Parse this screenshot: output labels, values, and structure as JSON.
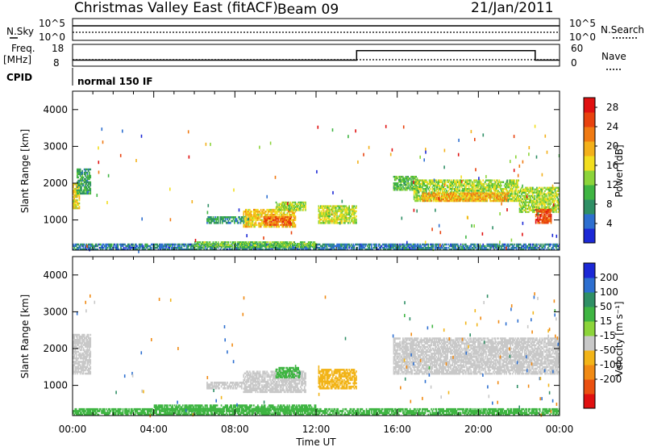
{
  "header": {
    "station": "Christmas Valley East (fitACF)",
    "beam": "Beam 09",
    "date": "21/Jan/2011"
  },
  "params": {
    "nsky_label": "N.Sky",
    "nsky_ticks": [
      "10^5",
      "10^0"
    ],
    "nsearch_label": "N.Search",
    "nsearch_ticks": [
      "10^5",
      "10^0"
    ],
    "freq_label": "Freq.",
    "freq_unit": "[MHz]",
    "freq_ticks": [
      "18",
      "8"
    ],
    "nave_label": "Nave",
    "nave_ticks": [
      "60",
      "0"
    ],
    "cpid_label": "CPID",
    "cpid_value": "normal 150 IF",
    "freq_steps": [
      {
        "start": 0.0,
        "end": 14.0,
        "freq": 10.5
      },
      {
        "start": 14.0,
        "end": 22.8,
        "freq": 15.0
      },
      {
        "start": 22.8,
        "end": 24.0,
        "freq": 10.5
      }
    ]
  },
  "chart_data": [
    {
      "type": "heatmap",
      "name": "power",
      "ylabel": "Slant Range [km]",
      "xlabel": "",
      "xlim": [
        0,
        24
      ],
      "ylim": [
        180,
        4500
      ],
      "yticks": [
        "1000",
        "2000",
        "3000",
        "4000"
      ],
      "yticks_values": [
        1000,
        2000,
        3000,
        4000
      ],
      "colorbar": {
        "label": "Power [dB]",
        "ticks": [
          "4",
          "8",
          "12",
          "16",
          "20",
          "24",
          "28"
        ],
        "tick_values": [
          4,
          8,
          12,
          16,
          20,
          24,
          28
        ],
        "range": [
          0,
          30
        ],
        "colors": [
          "#1b28d6",
          "#2d6fd0",
          "#2f8f65",
          "#3fb542",
          "#8cd43a",
          "#f2de1f",
          "#f3b01a",
          "#f07a12",
          "#e8420e",
          "#e01010"
        ]
      },
      "regions": [
        {
          "t0": 0.0,
          "t1": 0.35,
          "r0": 1300,
          "r1": 2000,
          "v": 17
        },
        {
          "t0": 0.2,
          "t1": 0.9,
          "r0": 1700,
          "r1": 2400,
          "v": 9
        },
        {
          "t0": 6.6,
          "t1": 8.7,
          "r0": 900,
          "r1": 1100,
          "v": 8
        },
        {
          "t0": 8.4,
          "t1": 11.0,
          "r0": 800,
          "r1": 1300,
          "v": 18
        },
        {
          "t0": 9.4,
          "t1": 10.8,
          "r0": 850,
          "r1": 1100,
          "v": 24
        },
        {
          "t0": 10.0,
          "t1": 11.5,
          "r0": 1250,
          "r1": 1500,
          "v": 14
        },
        {
          "t0": 12.1,
          "t1": 14.0,
          "r0": 900,
          "r1": 1400,
          "v": 15
        },
        {
          "t0": 15.8,
          "t1": 17.0,
          "r0": 1800,
          "r1": 2200,
          "v": 11
        },
        {
          "t0": 16.8,
          "t1": 22.0,
          "r0": 1500,
          "r1": 2100,
          "v": 14
        },
        {
          "t0": 17.2,
          "t1": 21.5,
          "r0": 1500,
          "r1": 1750,
          "v": 20
        },
        {
          "t0": 22.0,
          "t1": 24.0,
          "r0": 1200,
          "r1": 1900,
          "v": 14
        },
        {
          "t0": 22.8,
          "t1": 23.6,
          "r0": 900,
          "r1": 1300,
          "v": 25
        },
        {
          "t0": 0.0,
          "t1": 24.0,
          "r0": 180,
          "r1": 360,
          "v": 6
        },
        {
          "t0": 6.0,
          "t1": 12.0,
          "r0": 250,
          "r1": 420,
          "v": 12
        }
      ]
    },
    {
      "type": "heatmap",
      "name": "velocity",
      "ylabel": "Slant Range [km]",
      "xlabel": "Time UT",
      "xlim": [
        0,
        24
      ],
      "ylim": [
        180,
        4500
      ],
      "xticks": [
        "00:00",
        "04:00",
        "08:00",
        "12:00",
        "16:00",
        "20:00",
        "00:00"
      ],
      "xticks_values": [
        0,
        4,
        8,
        12,
        16,
        20,
        24
      ],
      "yticks": [
        "1000",
        "2000",
        "3000",
        "4000"
      ],
      "yticks_values": [
        1000,
        2000,
        3000,
        4000
      ],
      "colorbar": {
        "label": "Velocity [m s⁻¹]",
        "ticks": [
          "200",
          "100",
          "50",
          "15",
          "-15",
          "-50",
          "-100",
          "-200"
        ],
        "colors": [
          "#1b28d6",
          "#2d6fd0",
          "#2f8f65",
          "#3fb542",
          "#8cd43a",
          "#c8c8c8",
          "#f2b418",
          "#f08a14",
          "#ea5010",
          "#e01010"
        ]
      },
      "regions": [
        {
          "t0": 0.0,
          "t1": 0.9,
          "r0": 1300,
          "r1": 2400,
          "v": 0
        },
        {
          "t0": 6.6,
          "t1": 8.4,
          "r0": 900,
          "r1": 1100,
          "v": -30
        },
        {
          "t0": 8.4,
          "t1": 11.5,
          "r0": 800,
          "r1": 1400,
          "v": 0
        },
        {
          "t0": 10.0,
          "t1": 11.2,
          "r0": 1200,
          "r1": 1500,
          "v": 40
        },
        {
          "t0": 12.1,
          "t1": 14.0,
          "r0": 900,
          "r1": 1450,
          "v": -60
        },
        {
          "t0": 15.8,
          "t1": 24.0,
          "r0": 1300,
          "r1": 2300,
          "v": 0
        },
        {
          "t0": 0.0,
          "t1": 24.0,
          "r0": 180,
          "r1": 380,
          "v": 30
        },
        {
          "t0": 4.0,
          "t1": 12.0,
          "r0": 300,
          "r1": 480,
          "v": 35
        }
      ]
    }
  ]
}
